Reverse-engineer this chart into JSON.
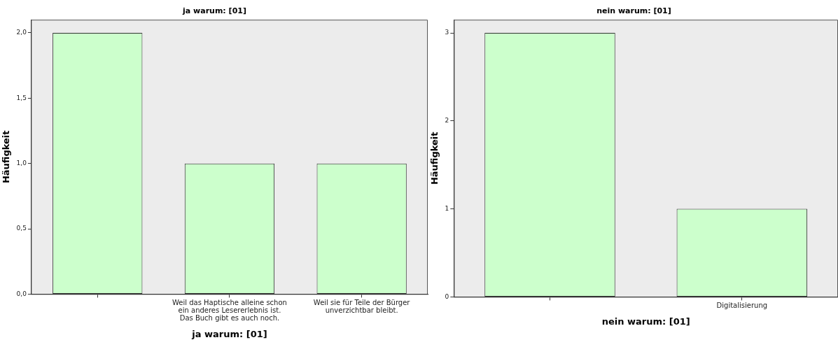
{
  "chart_data": [
    {
      "type": "bar",
      "title": "ja warum: [01]",
      "xlabel": "ja warum: [01]",
      "ylabel": "Häufigkeit",
      "categories": [
        null,
        "Weil das Haptische alleine schon ein anderes Lesererlebnis ist. Das Buch gibt es auch noch.",
        "Weil sie für Teile der Bürger unverzichtbar bleibt."
      ],
      "values": [
        2,
        1,
        1
      ],
      "color": "#ccffcc",
      "ylim": [
        0,
        2.1
      ],
      "yticks": [
        {
          "value": 0,
          "label": "0,0"
        },
        {
          "value": 0.5,
          "label": "0,5"
        },
        {
          "value": 1,
          "label": "1,0"
        },
        {
          "value": 1.5,
          "label": "1,5"
        },
        {
          "value": 2,
          "label": "2,0"
        }
      ]
    },
    {
      "type": "bar",
      "title": "nein warum: [01]",
      "xlabel": "nein warum: [01]",
      "ylabel": "Häufigkeit",
      "categories": [
        null,
        "Digitalisierung"
      ],
      "values": [
        3,
        1
      ],
      "color": "#ccffcc",
      "ylim": [
        0,
        3.15
      ],
      "yticks": [
        0,
        1,
        2,
        3
      ]
    }
  ]
}
